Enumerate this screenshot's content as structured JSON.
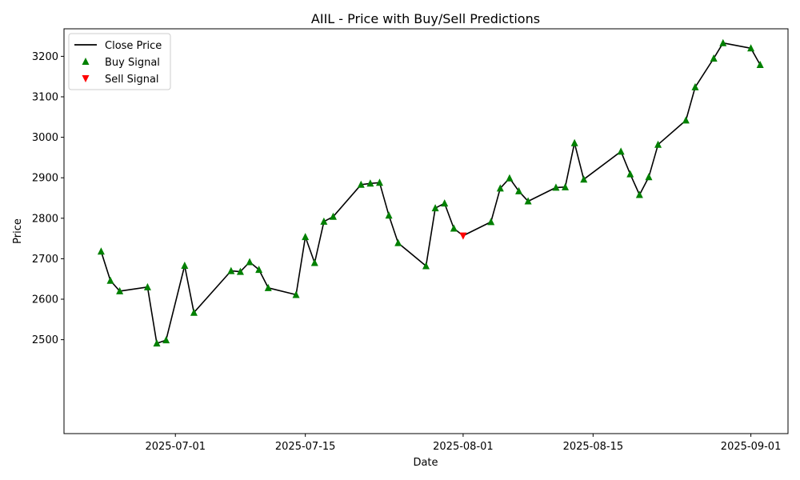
{
  "chart_data": {
    "type": "line",
    "title": "AIIL - Price with Buy/Sell Predictions",
    "xlabel": "Date",
    "ylabel": "Price",
    "xlim": [
      "2025-06-19",
      "2025-09-05"
    ],
    "ylim": [
      2455,
      2268
    ],
    "yticks": [
      2500,
      2600,
      2700,
      2800,
      2900,
      3000,
      3100,
      3200
    ],
    "xticks": [
      {
        "date": "2025-07-01",
        "label": "2025-07-01"
      },
      {
        "date": "2025-07-15",
        "label": "2025-07-15"
      },
      {
        "date": "2025-08-01",
        "label": "2025-08-01"
      },
      {
        "date": "2025-08-15",
        "label": "2025-08-15"
      },
      {
        "date": "2025-09-01",
        "label": "2025-09-01"
      }
    ],
    "grid": false,
    "legend": {
      "placement": "top-left",
      "entries": [
        {
          "label": "Close Price",
          "kind": "line",
          "color": "#000000"
        },
        {
          "label": "Buy Signal",
          "kind": "triangle-up",
          "color": "#008000"
        },
        {
          "label": "Sell Signal",
          "kind": "triangle-down",
          "color": "#ff0000"
        }
      ]
    },
    "series": [
      {
        "name": "Close Price",
        "color": "#000000",
        "points": [
          {
            "date": "2025-06-23",
            "value": 2718,
            "signal": "buy"
          },
          {
            "date": "2025-06-24",
            "value": 2646,
            "signal": "buy"
          },
          {
            "date": "2025-06-25",
            "value": 2620,
            "signal": "buy"
          },
          {
            "date": "2025-06-28",
            "value": 2630,
            "signal": "buy"
          },
          {
            "date": "2025-06-29",
            "value": 2491,
            "signal": "buy"
          },
          {
            "date": "2025-06-30",
            "value": 2499,
            "signal": "buy"
          },
          {
            "date": "2025-07-02",
            "value": 2683,
            "signal": "buy"
          },
          {
            "date": "2025-07-03",
            "value": 2567,
            "signal": "buy"
          },
          {
            "date": "2025-07-07",
            "value": 2670,
            "signal": "buy"
          },
          {
            "date": "2025-07-08",
            "value": 2668,
            "signal": "buy"
          },
          {
            "date": "2025-07-09",
            "value": 2692,
            "signal": "buy"
          },
          {
            "date": "2025-07-10",
            "value": 2673,
            "signal": "buy"
          },
          {
            "date": "2025-07-11",
            "value": 2628,
            "signal": "buy"
          },
          {
            "date": "2025-07-14",
            "value": 2611,
            "signal": "buy"
          },
          {
            "date": "2025-07-15",
            "value": 2754,
            "signal": "buy"
          },
          {
            "date": "2025-07-16",
            "value": 2690,
            "signal": "buy"
          },
          {
            "date": "2025-07-17",
            "value": 2792,
            "signal": "buy"
          },
          {
            "date": "2025-07-18",
            "value": 2804,
            "signal": "buy"
          },
          {
            "date": "2025-07-21",
            "value": 2883,
            "signal": "buy"
          },
          {
            "date": "2025-07-22",
            "value": 2886,
            "signal": "buy"
          },
          {
            "date": "2025-07-23",
            "value": 2888,
            "signal": "buy"
          },
          {
            "date": "2025-07-24",
            "value": 2807,
            "signal": "buy"
          },
          {
            "date": "2025-07-25",
            "value": 2739,
            "signal": "buy"
          },
          {
            "date": "2025-07-28",
            "value": 2682,
            "signal": "buy"
          },
          {
            "date": "2025-07-29",
            "value": 2825,
            "signal": "buy"
          },
          {
            "date": "2025-07-30",
            "value": 2837,
            "signal": "buy"
          },
          {
            "date": "2025-07-31",
            "value": 2775,
            "signal": "buy"
          },
          {
            "date": "2025-08-01",
            "value": 2757,
            "signal": "sell"
          },
          {
            "date": "2025-08-04",
            "value": 2791,
            "signal": "buy"
          },
          {
            "date": "2025-08-05",
            "value": 2874,
            "signal": "buy"
          },
          {
            "date": "2025-08-06",
            "value": 2899,
            "signal": "buy"
          },
          {
            "date": "2025-08-07",
            "value": 2867,
            "signal": "buy"
          },
          {
            "date": "2025-08-08",
            "value": 2842,
            "signal": "buy"
          },
          {
            "date": "2025-08-11",
            "value": 2876,
            "signal": "buy"
          },
          {
            "date": "2025-08-12",
            "value": 2877,
            "signal": "buy"
          },
          {
            "date": "2025-08-13",
            "value": 2986,
            "signal": "buy"
          },
          {
            "date": "2025-08-14",
            "value": 2896,
            "signal": "buy"
          },
          {
            "date": "2025-08-18",
            "value": 2965,
            "signal": "buy"
          },
          {
            "date": "2025-08-19",
            "value": 2909,
            "signal": "buy"
          },
          {
            "date": "2025-08-20",
            "value": 2858,
            "signal": "buy"
          },
          {
            "date": "2025-08-21",
            "value": 2902,
            "signal": "buy"
          },
          {
            "date": "2025-08-22",
            "value": 2982,
            "signal": "buy"
          },
          {
            "date": "2025-08-25",
            "value": 3042,
            "signal": "buy"
          },
          {
            "date": "2025-08-26",
            "value": 3124,
            "signal": "buy"
          },
          {
            "date": "2025-08-28",
            "value": 3195,
            "signal": "buy"
          },
          {
            "date": "2025-08-29",
            "value": 3233,
            "signal": "buy"
          },
          {
            "date": "2025-09-01",
            "value": 3220,
            "signal": "buy"
          },
          {
            "date": "2025-09-02",
            "value": 3179,
            "signal": "buy"
          }
        ]
      }
    ]
  }
}
